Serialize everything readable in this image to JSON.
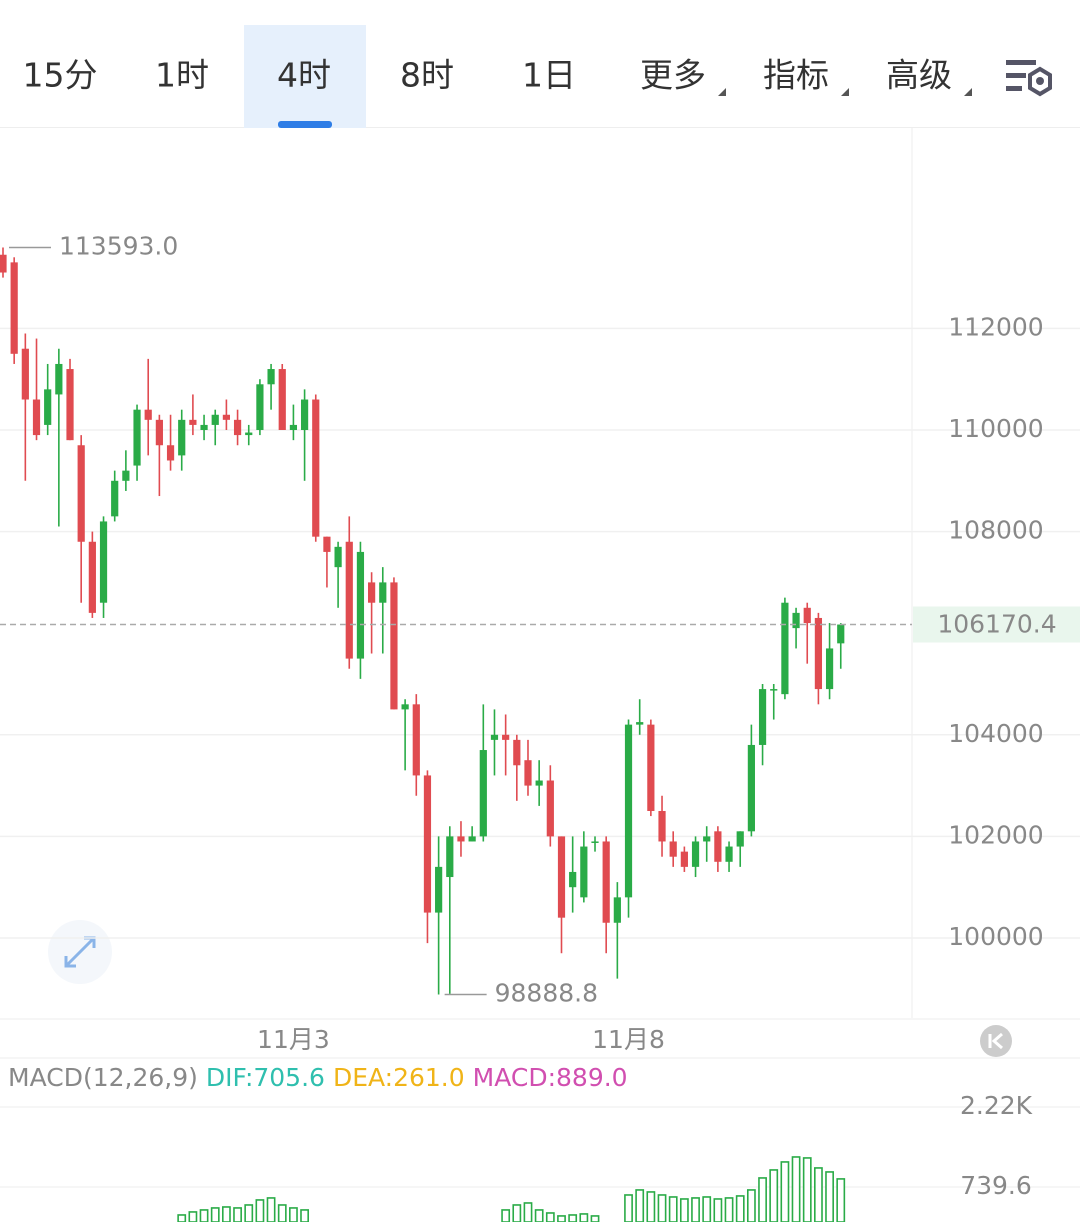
{
  "tabs": {
    "items": [
      {
        "label": "15分"
      },
      {
        "label": "1时"
      },
      {
        "label": "4时"
      },
      {
        "label": "8时"
      },
      {
        "label": "1日"
      },
      {
        "label": "更多",
        "dropdown": true
      },
      {
        "label": "指标",
        "dropdown": true
      },
      {
        "label": "高级",
        "dropdown": true
      }
    ],
    "active": 2
  },
  "chart_data": [
    {
      "type": "candlestick",
      "up_color": "#2aab47",
      "down_color": "#e04b50",
      "categories": [
        null,
        null,
        null,
        null,
        null,
        null,
        null,
        null,
        null,
        null,
        null,
        null,
        null,
        null,
        null,
        null,
        null,
        null,
        null,
        null,
        null,
        null,
        null,
        null,
        null,
        null,
        "11月3",
        null,
        null,
        null,
        null,
        null,
        null,
        null,
        null,
        null,
        null,
        null,
        null,
        null,
        null,
        null,
        null,
        null,
        null,
        null,
        null,
        null,
        null,
        null,
        null,
        null,
        null,
        null,
        null,
        null,
        "11月8",
        null,
        null,
        null,
        null,
        null,
        null,
        null,
        null,
        null,
        null,
        null,
        null,
        null,
        null,
        null,
        null,
        null,
        null,
        null
      ],
      "open": [
        113450,
        113300,
        111600,
        110600,
        110100,
        110700,
        111200,
        109700,
        107800,
        106600,
        108300,
        109000,
        109300,
        110400,
        110200,
        109700,
        109500,
        110200,
        110000,
        110100,
        110300,
        110200,
        109900,
        110000,
        110900,
        111200,
        110000,
        110000,
        110600,
        107900,
        107300,
        107800,
        105500,
        107000,
        106600,
        107000,
        104500,
        104600,
        103200,
        100500,
        101200,
        102000,
        101900,
        102000,
        103900,
        104000,
        103900,
        103500,
        103000,
        103100,
        102000,
        101000,
        100800,
        101900,
        101900,
        100300,
        100800,
        104200,
        104200,
        102500,
        101900,
        101700,
        101400,
        101900,
        102100,
        101500,
        101800,
        102100,
        103800,
        104900,
        104800,
        106100,
        106500,
        106300,
        104900,
        105800
      ],
      "high": [
        113593,
        113400,
        111900,
        111800,
        111300,
        111600,
        111400,
        109900,
        108000,
        108300,
        109200,
        109600,
        110500,
        111400,
        110300,
        110300,
        110400,
        110700,
        110300,
        110400,
        110600,
        110400,
        110100,
        111000,
        111300,
        111300,
        110500,
        110800,
        110700,
        107900,
        107800,
        108300,
        107800,
        107200,
        107300,
        107100,
        104700,
        104800,
        103300,
        102000,
        102200,
        102300,
        102200,
        104600,
        104500,
        104400,
        104000,
        103900,
        103500,
        103400,
        102000,
        102000,
        102100,
        102000,
        102000,
        101100,
        104300,
        104700,
        104300,
        102800,
        102100,
        101800,
        102000,
        102200,
        102200,
        101900,
        102100,
        104200,
        105000,
        105000,
        106700,
        106500,
        106600,
        106400,
        106200,
        106200
      ],
      "low": [
        113000,
        111300,
        109000,
        109800,
        109900,
        108100,
        109800,
        106600,
        106300,
        106300,
        108200,
        108800,
        109000,
        109500,
        108700,
        109200,
        109200,
        109900,
        109800,
        109700,
        110000,
        109700,
        109700,
        109900,
        110400,
        110000,
        109800,
        109000,
        107800,
        106900,
        106500,
        105300,
        105100,
        105600,
        105600,
        104500,
        103300,
        102800,
        99900,
        98888.8,
        98900,
        101600,
        101900,
        101900,
        103200,
        103200,
        102700,
        102800,
        102600,
        101800,
        99700,
        100500,
        100700,
        101700,
        99700,
        99200,
        100400,
        104000,
        102400,
        101600,
        101400,
        101300,
        101200,
        101500,
        101300,
        101300,
        101400,
        102000,
        103400,
        104300,
        104700,
        105700,
        105400,
        104600,
        104700,
        105300
      ],
      "close": [
        113100,
        111500,
        110600,
        109900,
        110800,
        111300,
        109800,
        107800,
        106400,
        108200,
        109000,
        109200,
        110400,
        110200,
        109700,
        109400,
        110200,
        110100,
        110100,
        110300,
        110200,
        109900,
        109950,
        110900,
        111200,
        110000,
        110100,
        110600,
        107900,
        107600,
        107700,
        105500,
        107600,
        106600,
        107000,
        104500,
        104600,
        103200,
        100500,
        101400,
        102000,
        101900,
        102000,
        103700,
        104000,
        103900,
        103400,
        103000,
        103100,
        102000,
        100400,
        101300,
        101800,
        101900,
        100300,
        100800,
        104200,
        104250,
        102500,
        101900,
        101600,
        101400,
        101900,
        102000,
        101500,
        101800,
        102100,
        103800,
        104900,
        104900,
        106600,
        106400,
        106200,
        104900,
        105700,
        106170.4
      ],
      "ylim": [
        98425,
        115945
      ],
      "yticks": [
        100000,
        102000,
        104000,
        108000,
        110000,
        112000
      ],
      "grid": true,
      "current_price": 106170.4,
      "current_color": "#25a244",
      "annotations": [
        {
          "value": 113593,
          "label": "113593.0",
          "kind": "high"
        },
        {
          "value": 98888.8,
          "label": "98888.8",
          "kind": "low"
        }
      ]
    },
    {
      "type": "bar",
      "title": "MACD(12,26,9)",
      "color": "#2aab47",
      "legend": [
        {
          "text": "DIF:705.6",
          "color": "#2fbfae"
        },
        {
          "text": "DEA:261.0",
          "color": "#f0b418"
        },
        {
          "text": "MACD:889.0",
          "color": "#d14fb0"
        }
      ],
      "values": [
        null,
        null,
        null,
        null,
        null,
        null,
        null,
        null,
        null,
        null,
        null,
        null,
        null,
        null,
        null,
        null,
        222,
        278,
        315,
        352,
        370,
        352,
        407,
        500,
        537,
        407,
        352,
        315,
        null,
        null,
        null,
        null,
        null,
        null,
        null,
        null,
        null,
        null,
        null,
        null,
        null,
        null,
        null,
        null,
        null,
        315,
        407,
        444,
        315,
        259,
        204,
        222,
        241,
        204,
        null,
        null,
        592,
        685,
        648,
        592,
        555,
        518,
        537,
        555,
        518,
        537,
        574,
        685,
        907,
        1055,
        1203,
        1295,
        1277,
        1092,
        1018,
        889
      ],
      "ylim": [
        92,
        3089
      ],
      "yticks": [
        {
          "value": 2220,
          "label": "2.22K"
        },
        739.6
      ],
      "grid": true
    }
  ]
}
